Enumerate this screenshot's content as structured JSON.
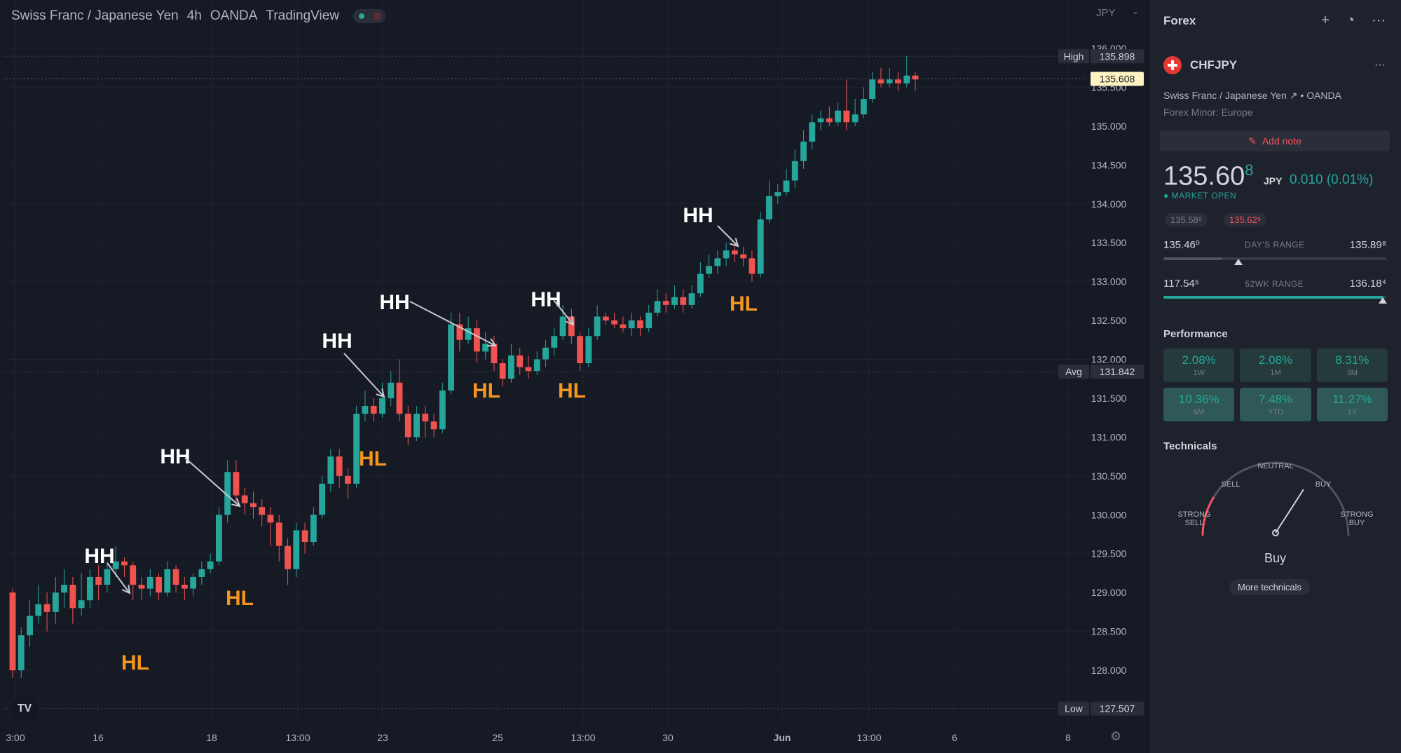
{
  "header": {
    "symbol_desc": "Swiss Franc / Japanese Yen",
    "interval": "4h",
    "exchange": "OANDA",
    "platform": "TradingView",
    "currency": "JPY"
  },
  "axis": {
    "price_ticks": [
      "136.000",
      "135.500",
      "135.000",
      "134.500",
      "134.000",
      "133.500",
      "133.000",
      "132.500",
      "132.000",
      "131.500",
      "131.000",
      "130.500",
      "130.000",
      "129.500",
      "129.000",
      "128.500",
      "128.000"
    ],
    "time_ticks": [
      "3:00",
      "16",
      "18",
      "13:00",
      "23",
      "25",
      "13:00",
      "30",
      "Jun",
      "13:00",
      "6",
      "8"
    ],
    "high_label": "High",
    "high_value": "135.898",
    "last_value": "135.608",
    "avg_label": "Avg",
    "avg_value": "131.842",
    "low_label": "Low",
    "low_value": "127.507"
  },
  "annotations": [
    "HH",
    "HL",
    "HH",
    "HL",
    "HH",
    "HL",
    "HH",
    "HL",
    "HH",
    "HL",
    "HH",
    "HL"
  ],
  "colors": {
    "up": "#26a69a",
    "down": "#ef5350",
    "hh": "#ffffff",
    "hl": "#f5961e",
    "background": "#161a25"
  },
  "panel": {
    "title": "Forex",
    "symbol": "CHFJPY",
    "symbol_desc": "Swiss Franc / Japanese Yen",
    "exchange": "OANDA",
    "category": "Forex Minor: Europe",
    "add_note": "Add note",
    "price_main": "135.60",
    "price_frac": "8",
    "price_currency": "JPY",
    "change": "0.010 (0.01%)",
    "market_status": "MARKET OPEN",
    "bid": "135.58⁸",
    "ask": "135.62⁵",
    "day_low": "135.46⁰",
    "day_label": "DAY'S RANGE",
    "day_high": "135.89⁸",
    "wk_low": "117.54⁵",
    "wk_label": "52WK RANGE",
    "wk_high": "136.18⁴",
    "performance_title": "Performance",
    "performance": [
      {
        "value": "2.08%",
        "period": "1W"
      },
      {
        "value": "2.08%",
        "period": "1M"
      },
      {
        "value": "8.31%",
        "period": "3M"
      },
      {
        "value": "10.36%",
        "period": "6M"
      },
      {
        "value": "7.48%",
        "period": "YTD"
      },
      {
        "value": "11.27%",
        "period": "1Y"
      }
    ],
    "technicals_title": "Technicals",
    "gauge_labels": {
      "neutral": "NEUTRAL",
      "sell": "SELL",
      "buy": "BUY",
      "strong_sell": [
        "STRONG",
        "SELL"
      ],
      "strong_buy": [
        "STRONG",
        "BUY"
      ]
    },
    "technicals_result": "Buy",
    "more_technicals": "More technicals"
  },
  "chart_data": {
    "type": "candlestick",
    "ylim": [
      127.2,
      136.2
    ],
    "candles": [
      [
        129.0,
        128.0,
        129.05,
        127.9
      ],
      [
        128.0,
        128.45,
        128.55,
        127.9
      ],
      [
        128.45,
        128.7,
        128.9,
        128.3
      ],
      [
        128.7,
        128.85,
        129.1,
        128.6
      ],
      [
        128.85,
        128.75,
        129.0,
        128.5
      ],
      [
        128.75,
        129.0,
        129.2,
        128.6
      ],
      [
        129.0,
        129.1,
        129.3,
        128.8
      ],
      [
        129.1,
        128.8,
        129.2,
        128.6
      ],
      [
        128.8,
        128.9,
        129.25,
        128.7
      ],
      [
        128.9,
        129.2,
        129.3,
        128.8
      ],
      [
        129.2,
        129.1,
        129.35,
        128.9
      ],
      [
        129.1,
        129.3,
        129.4,
        129.0
      ],
      [
        129.3,
        129.4,
        129.6,
        129.2
      ],
      [
        129.4,
        129.35,
        129.45,
        129.2
      ],
      [
        129.35,
        129.1,
        129.4,
        128.9
      ],
      [
        129.1,
        129.05,
        129.2,
        128.9
      ],
      [
        129.05,
        129.2,
        129.3,
        128.95
      ],
      [
        129.2,
        129.0,
        129.25,
        128.9
      ],
      [
        129.0,
        129.3,
        129.4,
        128.95
      ],
      [
        129.3,
        129.1,
        129.35,
        129.0
      ],
      [
        129.1,
        129.05,
        129.2,
        128.9
      ],
      [
        129.05,
        129.2,
        129.25,
        128.95
      ],
      [
        129.2,
        129.3,
        129.4,
        129.1
      ],
      [
        129.3,
        129.4,
        129.5,
        129.25
      ],
      [
        129.4,
        130.0,
        130.1,
        129.35
      ],
      [
        130.0,
        130.55,
        130.7,
        129.9
      ],
      [
        130.55,
        130.25,
        130.7,
        130.1
      ],
      [
        130.25,
        130.15,
        130.35,
        130.0
      ],
      [
        130.15,
        130.1,
        130.3,
        129.95
      ],
      [
        130.1,
        130.0,
        130.2,
        129.85
      ],
      [
        130.0,
        129.9,
        130.1,
        129.6
      ],
      [
        129.9,
        129.6,
        130.0,
        129.4
      ],
      [
        129.6,
        129.3,
        129.7,
        129.1
      ],
      [
        129.3,
        129.8,
        129.9,
        129.2
      ],
      [
        129.8,
        129.65,
        129.9,
        129.5
      ],
      [
        129.65,
        130.0,
        130.1,
        129.6
      ],
      [
        130.0,
        130.4,
        130.5,
        129.95
      ],
      [
        130.4,
        130.75,
        130.85,
        130.3
      ],
      [
        130.75,
        130.5,
        130.85,
        130.35
      ],
      [
        130.5,
        130.4,
        130.6,
        130.2
      ],
      [
        130.4,
        131.3,
        131.4,
        130.35
      ],
      [
        131.3,
        131.4,
        131.6,
        131.2
      ],
      [
        131.4,
        131.3,
        131.5,
        131.2
      ],
      [
        131.3,
        131.5,
        131.7,
        131.25
      ],
      [
        131.5,
        131.7,
        131.85,
        131.4
      ],
      [
        131.7,
        131.3,
        132.0,
        131.2
      ],
      [
        131.3,
        131.0,
        131.4,
        130.9
      ],
      [
        131.0,
        131.3,
        131.4,
        130.95
      ],
      [
        131.3,
        131.2,
        131.4,
        131.0
      ],
      [
        131.2,
        131.1,
        131.3,
        131.0
      ],
      [
        131.1,
        131.6,
        131.7,
        131.05
      ],
      [
        131.6,
        132.45,
        132.6,
        131.55
      ],
      [
        132.45,
        132.25,
        132.6,
        132.1
      ],
      [
        132.25,
        132.4,
        132.55,
        132.2
      ],
      [
        132.4,
        132.1,
        132.5,
        131.95
      ],
      [
        132.1,
        132.2,
        132.35,
        132.0
      ],
      [
        132.2,
        131.95,
        132.3,
        131.85
      ],
      [
        131.95,
        131.75,
        132.0,
        131.65
      ],
      [
        131.75,
        132.05,
        132.2,
        131.7
      ],
      [
        132.05,
        131.9,
        132.15,
        131.8
      ],
      [
        131.9,
        131.85,
        132.05,
        131.75
      ],
      [
        131.85,
        132.0,
        132.1,
        131.8
      ],
      [
        132.0,
        132.15,
        132.25,
        131.9
      ],
      [
        132.15,
        132.3,
        132.4,
        132.05
      ],
      [
        132.3,
        132.55,
        132.7,
        132.25
      ],
      [
        132.55,
        132.3,
        132.65,
        132.2
      ],
      [
        132.3,
        131.95,
        132.35,
        131.85
      ],
      [
        131.95,
        132.3,
        132.4,
        131.9
      ],
      [
        132.3,
        132.55,
        132.7,
        132.25
      ],
      [
        132.55,
        132.5,
        132.6,
        132.45
      ],
      [
        132.5,
        132.45,
        132.6,
        132.4
      ],
      [
        132.45,
        132.4,
        132.55,
        132.35
      ],
      [
        132.4,
        132.5,
        132.6,
        132.3
      ],
      [
        132.5,
        132.4,
        132.55,
        132.3
      ],
      [
        132.4,
        132.6,
        132.7,
        132.35
      ],
      [
        132.6,
        132.75,
        132.9,
        132.55
      ],
      [
        132.75,
        132.7,
        132.85,
        132.6
      ],
      [
        132.7,
        132.8,
        132.95,
        132.65
      ],
      [
        132.8,
        132.7,
        132.9,
        132.6
      ],
      [
        132.7,
        132.85,
        132.95,
        132.65
      ],
      [
        132.85,
        133.1,
        133.25,
        132.8
      ],
      [
        133.1,
        133.2,
        133.35,
        133.05
      ],
      [
        133.2,
        133.3,
        133.4,
        133.1
      ],
      [
        133.3,
        133.4,
        133.5,
        133.2
      ],
      [
        133.4,
        133.35,
        133.5,
        133.25
      ],
      [
        133.35,
        133.3,
        133.45,
        133.2
      ],
      [
        133.3,
        133.1,
        133.4,
        133.0
      ],
      [
        133.1,
        133.8,
        133.9,
        133.05
      ],
      [
        133.8,
        134.1,
        134.3,
        133.75
      ],
      [
        134.1,
        134.15,
        134.25,
        134.0
      ],
      [
        134.15,
        134.3,
        134.45,
        134.1
      ],
      [
        134.3,
        134.55,
        134.7,
        134.2
      ],
      [
        134.55,
        134.8,
        134.95,
        134.45
      ],
      [
        134.8,
        135.05,
        135.15,
        134.7
      ],
      [
        135.05,
        135.1,
        135.2,
        134.95
      ],
      [
        135.1,
        135.05,
        135.25,
        135.0
      ],
      [
        135.05,
        135.2,
        135.3,
        135.0
      ],
      [
        135.2,
        135.05,
        135.6,
        134.95
      ],
      [
        135.05,
        135.15,
        135.35,
        135.0
      ],
      [
        135.15,
        135.35,
        135.5,
        135.1
      ],
      [
        135.35,
        135.6,
        135.7,
        135.3
      ],
      [
        135.6,
        135.55,
        135.75,
        135.5
      ],
      [
        135.55,
        135.6,
        135.75,
        135.5
      ],
      [
        135.6,
        135.55,
        135.7,
        135.45
      ],
      [
        135.55,
        135.65,
        135.9,
        135.5
      ],
      [
        135.65,
        135.6,
        135.7,
        135.45
      ]
    ]
  }
}
